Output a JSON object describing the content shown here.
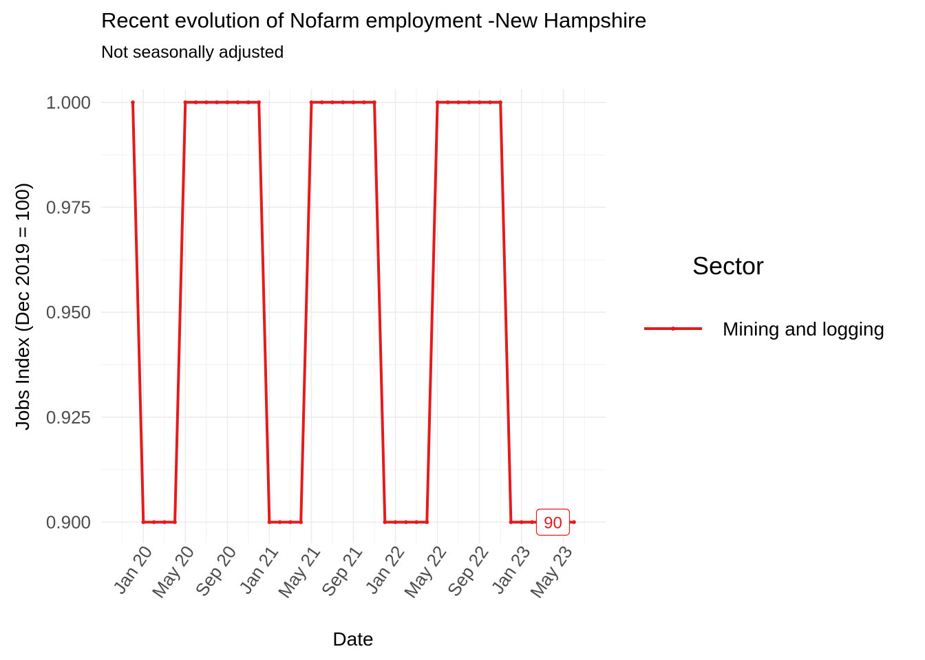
{
  "chart_data": {
    "type": "line",
    "title": "Recent evolution of Nofarm employment -New Hampshire",
    "subtitle": "Not seasonally adjusted",
    "xlabel": "Date",
    "ylabel": "Jobs Index (Dec 2019 = 100)",
    "ylim": [
      0.895,
      1.008
    ],
    "y_ticks": [
      0.9,
      0.925,
      0.95,
      0.975,
      1.0
    ],
    "y_tick_labels": [
      "0.900",
      "0.925",
      "0.950",
      "0.975",
      "1.000"
    ],
    "x_ticks": [
      "2020-01",
      "2020-05",
      "2020-09",
      "2021-01",
      "2021-05",
      "2021-09",
      "2022-01",
      "2022-05",
      "2022-09",
      "2023-01",
      "2023-05"
    ],
    "x_tick_labels": [
      "Jan 20",
      "May 20",
      "Sep 20",
      "Jan 21",
      "May 21",
      "Sep 21",
      "Jan 22",
      "May 22",
      "Sep 22",
      "Jan 23",
      "May 23"
    ],
    "grid": true,
    "legend_position": "right",
    "legend_title": "Sector",
    "series": [
      {
        "name": "Mining and logging",
        "color": "#e41a1c",
        "x": [
          "2019-12",
          "2020-01",
          "2020-02",
          "2020-03",
          "2020-04",
          "2020-05",
          "2020-06",
          "2020-07",
          "2020-08",
          "2020-09",
          "2020-10",
          "2020-11",
          "2020-12",
          "2021-01",
          "2021-02",
          "2021-03",
          "2021-04",
          "2021-05",
          "2021-06",
          "2021-07",
          "2021-08",
          "2021-09",
          "2021-10",
          "2021-11",
          "2021-12",
          "2022-01",
          "2022-02",
          "2022-03",
          "2022-04",
          "2022-05",
          "2022-06",
          "2022-07",
          "2022-08",
          "2022-09",
          "2022-10",
          "2022-11",
          "2022-12",
          "2023-01",
          "2023-02",
          "2023-03",
          "2023-04",
          "2023-05",
          "2023-06"
        ],
        "values": [
          1.0,
          0.9,
          0.9,
          0.9,
          0.9,
          1.0,
          1.0,
          1.0,
          1.0,
          1.0,
          1.0,
          1.0,
          1.0,
          0.9,
          0.9,
          0.9,
          0.9,
          1.0,
          1.0,
          1.0,
          1.0,
          1.0,
          1.0,
          1.0,
          0.9,
          0.9,
          0.9,
          0.9,
          0.9,
          1.0,
          1.0,
          1.0,
          1.0,
          1.0,
          1.0,
          1.0,
          0.9,
          0.9,
          0.9,
          0.9,
          0.9,
          0.9,
          0.9
        ]
      }
    ],
    "annotation": {
      "text": "90",
      "x": "2023-04",
      "y": 0.9
    }
  }
}
